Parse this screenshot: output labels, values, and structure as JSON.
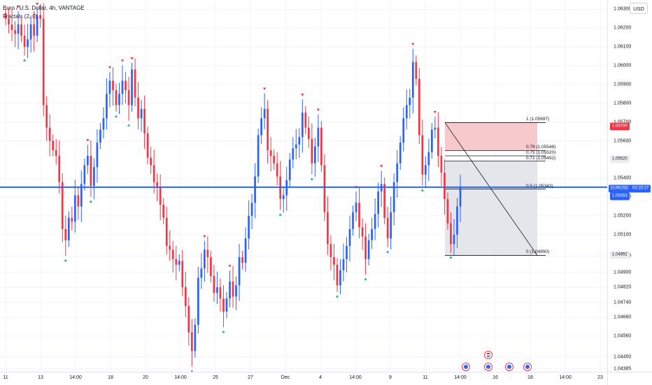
{
  "header": {
    "symbol_title": "Euro / U.S. Dollar, 4h, VANTAGE",
    "indicator": "Fractals (2, 0)",
    "currency_button": "USD"
  },
  "price_axis": {
    "ticks": [
      "1.06300",
      "1.06200",
      "1.06100",
      "1.06000",
      "1.05900",
      "1.05800",
      "1.05700",
      "1.05600",
      "1.05400",
      "1.05300",
      "1.05200",
      "1.05100",
      "1.04986",
      "1.04900",
      "1.04820",
      "1.04740",
      "1.04660",
      "1.04560",
      "1.04450",
      "1.04385"
    ],
    "tick_values": [
      1.063,
      1.062,
      1.061,
      1.06,
      1.059,
      1.058,
      1.057,
      1.056,
      1.054,
      1.053,
      1.052,
      1.051,
      1.04986,
      1.049,
      1.0482,
      1.0474,
      1.0466,
      1.0456,
      1.0445,
      1.04385
    ]
  },
  "badges": {
    "symbol": "EURUSD",
    "countdown": "03:20:27",
    "last_price": "1.05353",
    "high_marker": "1.05700",
    "fib_marker": "1.05520",
    "low_marker": "1.04992"
  },
  "time_axis": {
    "labels": [
      "11",
      "13",
      "14:00",
      "18",
      "20",
      "14:00",
      "25",
      "27",
      "Dec",
      "4",
      "14:00",
      "9",
      "11",
      "14:00",
      "16",
      "18",
      "14:00",
      "23"
    ]
  },
  "fib_levels": [
    {
      "ratio": "1",
      "price": 1.05697,
      "label": "1 (1.05697)"
    },
    {
      "ratio": "0.79",
      "price": 1.05548,
      "label": "0.79 (1.05548)"
    },
    {
      "ratio": "0.75",
      "price": 1.0552,
      "label": "0.75 (1.05520)"
    },
    {
      "ratio": "0.71",
      "price": 1.05492,
      "label": "0.71 (1.05492)"
    },
    {
      "ratio": "0.5",
      "price": 1.05343,
      "label": "0.5 (1.05343)"
    },
    {
      "ratio": "0",
      "price": 1.0499,
      "label": "0 (1.04990)"
    }
  ],
  "colors": {
    "up": "#2962ff",
    "down": "#f23645",
    "fractal_up": "#22ab94",
    "fractal_down": "#f23645",
    "price_line": "#2962ff",
    "fib_zone_top": "#f7c9cd",
    "fib_zone_bottom": "#e4e6ec"
  },
  "chart_data": {
    "type": "candlestick",
    "title": "Euro / U.S. Dollar, 4h, VANTAGE",
    "current_price": 1.05353,
    "ylim": [
      1.0437,
      1.0635
    ],
    "close_path": [
      1.0625,
      1.0622,
      1.0619,
      1.0617,
      1.0622,
      1.0616,
      1.061,
      1.0614,
      1.0622,
      1.0616,
      1.0627,
      1.0625,
      1.0579,
      1.0567,
      1.056,
      1.0555,
      1.0552,
      1.0538,
      1.0513,
      1.0507,
      1.0519,
      1.0517,
      1.0531,
      1.0525,
      1.0537,
      1.0547,
      1.0552,
      1.0536,
      1.0546,
      1.0559,
      1.0566,
      1.0572,
      1.0585,
      1.0592,
      1.0587,
      1.0579,
      1.0585,
      1.0592,
      1.0587,
      1.0579,
      1.0598,
      1.0583,
      1.0572,
      1.0577,
      1.0564,
      1.0551,
      1.0547,
      1.0538,
      1.0535,
      1.0526,
      1.0519,
      1.0504,
      1.0502,
      1.0497,
      1.0494,
      1.0496,
      1.0482,
      1.0472,
      1.0458,
      1.0448,
      1.0462,
      1.0487,
      1.0492,
      1.0502,
      1.0498,
      1.0488,
      1.0479,
      1.0482,
      1.0476,
      1.0469,
      1.0476,
      1.0485,
      1.0477,
      1.0483,
      1.0498,
      1.0495,
      1.0508,
      1.052,
      1.0527,
      1.0541,
      1.0563,
      1.0572,
      1.0577,
      1.0555,
      1.0552,
      1.0548,
      1.0541,
      1.0529,
      1.0531,
      1.0539,
      1.055,
      1.0556,
      1.0558,
      1.0562,
      1.0575,
      1.0567,
      1.0561,
      1.0548,
      1.0557,
      1.0567,
      1.0547,
      1.0522,
      1.0505,
      1.0498,
      1.0494,
      1.0483,
      1.0491,
      1.0497,
      1.0504,
      1.0513,
      1.0522,
      1.0527,
      1.0514,
      1.0509,
      1.0497,
      1.0507,
      1.0513,
      1.0521,
      1.0533,
      1.0537,
      1.0519,
      1.0508,
      1.0522,
      1.0538,
      1.0548,
      1.0559,
      1.0572,
      1.0579,
      1.0583,
      1.0602,
      1.0593,
      1.0563,
      1.0542,
      1.0547,
      1.0554,
      1.0566,
      1.0567,
      1.0552,
      1.0543,
      1.0529,
      1.0516,
      1.0505,
      1.051,
      1.0525,
      1.0535
    ]
  }
}
